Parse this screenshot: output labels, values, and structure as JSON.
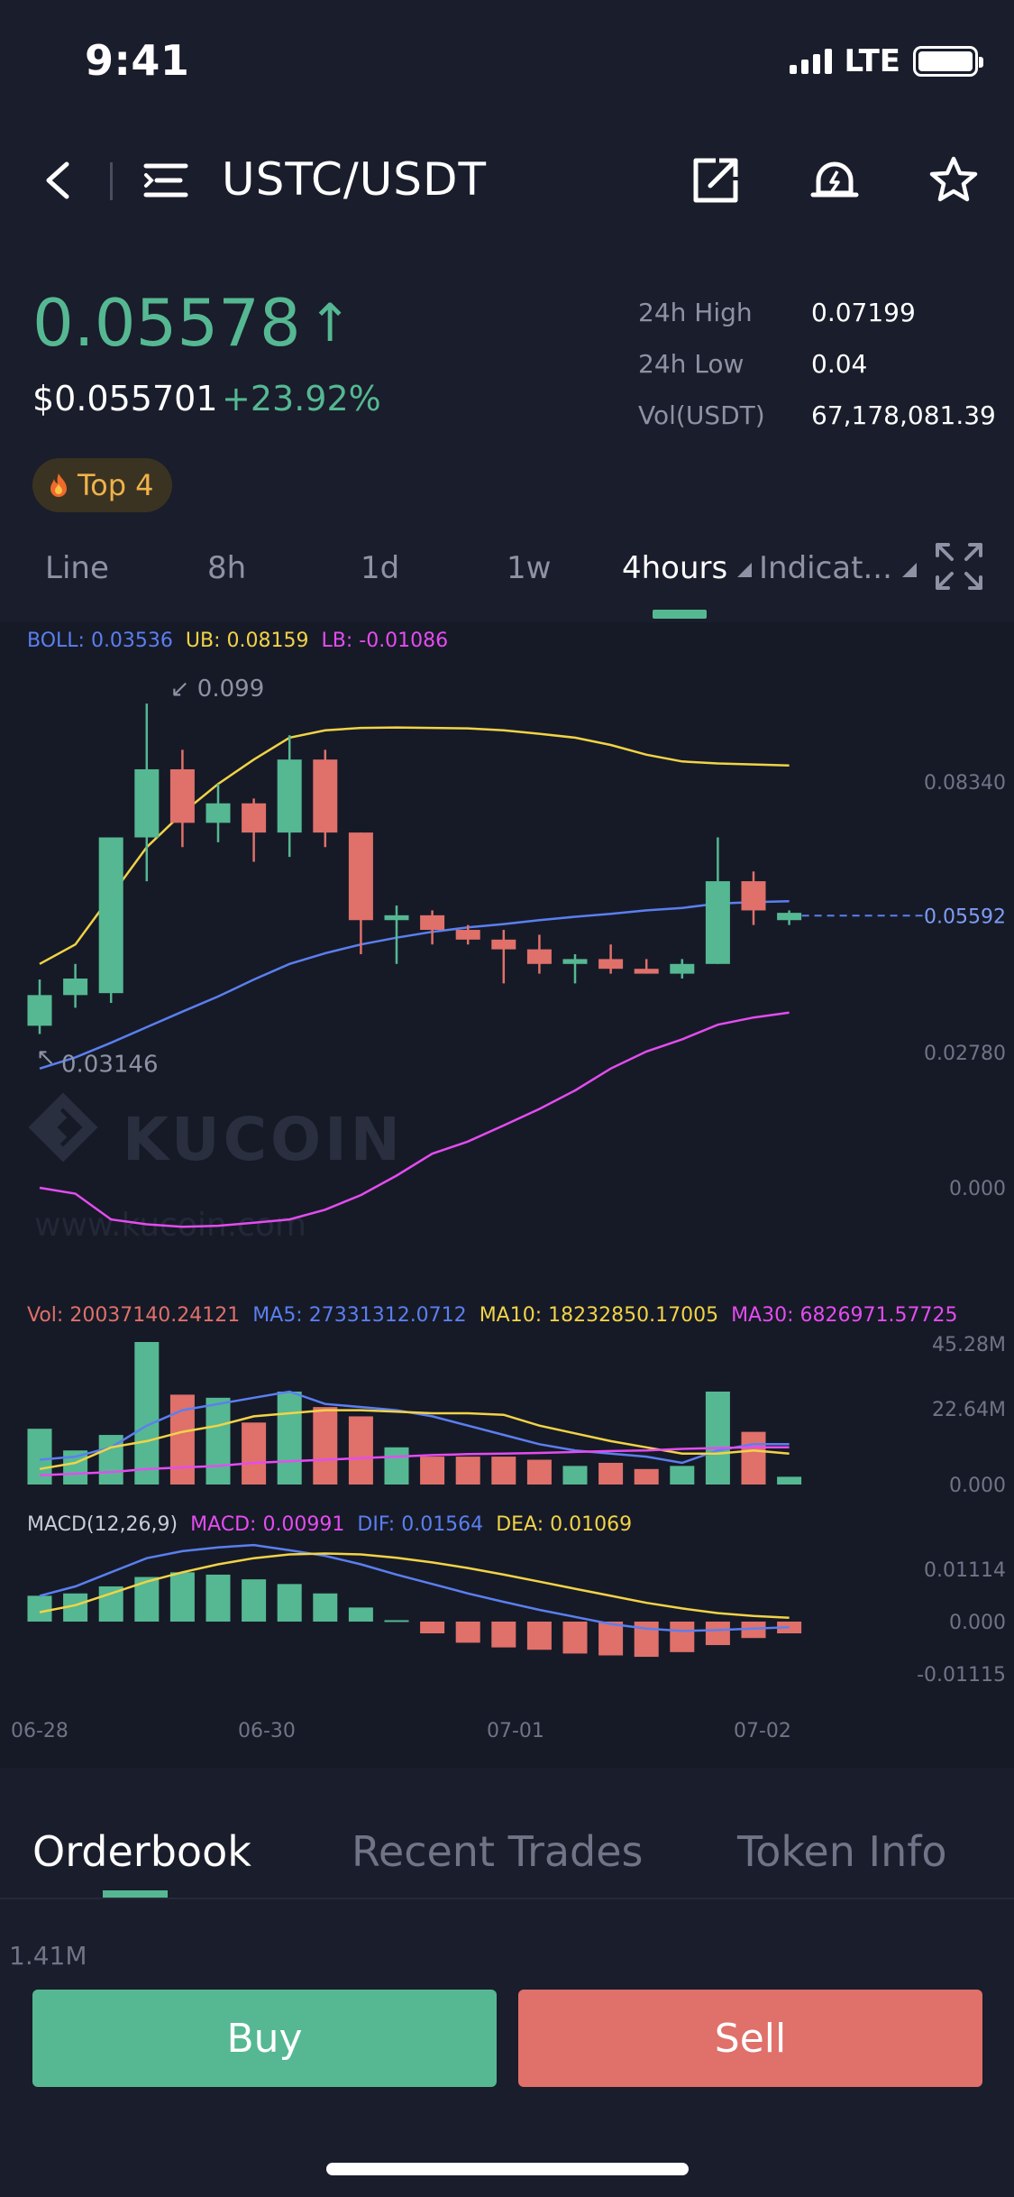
{
  "status_bar": {
    "time": "9:41",
    "network": "LTE"
  },
  "header": {
    "pair": "USTC/USDT"
  },
  "price": {
    "last": "0.05578",
    "arrow": "↑",
    "fiat": "$0.055701",
    "change": "+23.92%"
  },
  "stats": [
    {
      "label": "24h High",
      "value": "0.07199"
    },
    {
      "label": "24h Low",
      "value": "0.04"
    },
    {
      "label": "Vol(USDT)",
      "value": "67,178,081.39"
    }
  ],
  "badge": {
    "label": "Top 4"
  },
  "tabs": [
    {
      "label": "Line"
    },
    {
      "label": "8h"
    },
    {
      "label": "1d"
    },
    {
      "label": "1w"
    },
    {
      "label": "4hours"
    },
    {
      "label": "Indicat..."
    }
  ],
  "colors": {
    "up": "#55b892",
    "down": "#e0706a",
    "boll": "#5b7ff0",
    "ub": "#f2d346",
    "lb": "#e44cf0",
    "bg": "#1a1d2b"
  },
  "chart_data": {
    "type": "candlestick",
    "legend": {
      "boll": "BOLL: 0.03536",
      "ub": "UB: 0.08159",
      "lb": "LB: -0.01086"
    },
    "max_label": "0.099",
    "min_label": "0.03146",
    "last_price_label": "0.05592",
    "price_ticks": [
      "0.08340",
      "0.02780",
      "0.000"
    ],
    "x_ticks": [
      "06-28",
      "06-30",
      "07-01",
      "07-02"
    ],
    "candles": [
      {
        "o": 0.0333,
        "h": 0.0428,
        "l": 0.0316,
        "c": 0.0396
      },
      {
        "o": 0.0396,
        "h": 0.046,
        "l": 0.037,
        "c": 0.043
      },
      {
        "o": 0.04,
        "h": 0.072,
        "l": 0.038,
        "c": 0.072
      },
      {
        "o": 0.072,
        "h": 0.0995,
        "l": 0.063,
        "c": 0.086
      },
      {
        "o": 0.086,
        "h": 0.09,
        "l": 0.07,
        "c": 0.075
      },
      {
        "o": 0.075,
        "h": 0.083,
        "l": 0.071,
        "c": 0.079
      },
      {
        "o": 0.079,
        "h": 0.08,
        "l": 0.067,
        "c": 0.073
      },
      {
        "o": 0.073,
        "h": 0.093,
        "l": 0.068,
        "c": 0.088
      },
      {
        "o": 0.088,
        "h": 0.09,
        "l": 0.07,
        "c": 0.073
      },
      {
        "o": 0.073,
        "h": 0.073,
        "l": 0.048,
        "c": 0.055
      },
      {
        "o": 0.055,
        "h": 0.058,
        "l": 0.046,
        "c": 0.056
      },
      {
        "o": 0.056,
        "h": 0.057,
        "l": 0.05,
        "c": 0.053
      },
      {
        "o": 0.053,
        "h": 0.054,
        "l": 0.05,
        "c": 0.051
      },
      {
        "o": 0.051,
        "h": 0.053,
        "l": 0.042,
        "c": 0.049
      },
      {
        "o": 0.049,
        "h": 0.052,
        "l": 0.044,
        "c": 0.046
      },
      {
        "o": 0.046,
        "h": 0.048,
        "l": 0.042,
        "c": 0.047
      },
      {
        "o": 0.047,
        "h": 0.05,
        "l": 0.044,
        "c": 0.045
      },
      {
        "o": 0.045,
        "h": 0.047,
        "l": 0.044,
        "c": 0.044
      },
      {
        "o": 0.044,
        "h": 0.047,
        "l": 0.043,
        "c": 0.046
      },
      {
        "o": 0.046,
        "h": 0.072,
        "l": 0.046,
        "c": 0.063
      },
      {
        "o": 0.063,
        "h": 0.065,
        "l": 0.054,
        "c": 0.057
      },
      {
        "o": 0.055,
        "h": 0.057,
        "l": 0.054,
        "c": 0.0565
      }
    ],
    "boll_line": [
      0.0245,
      0.0268,
      0.0298,
      0.033,
      0.0362,
      0.0393,
      0.0428,
      0.046,
      0.0482,
      0.05,
      0.0514,
      0.0526,
      0.0535,
      0.0542,
      0.055,
      0.0557,
      0.0563,
      0.057,
      0.0575,
      0.0584,
      0.0587,
      0.0589
    ],
    "ub_line": [
      0.046,
      0.05,
      0.06,
      0.07,
      0.077,
      0.083,
      0.088,
      0.0925,
      0.094,
      0.0945,
      0.0946,
      0.0945,
      0.0944,
      0.094,
      0.0933,
      0.0925,
      0.091,
      0.089,
      0.0876,
      0.0872,
      0.087,
      0.0868
    ],
    "lb_line": [
      0.0,
      -0.0012,
      -0.0065,
      -0.0075,
      -0.008,
      -0.0078,
      -0.0072,
      -0.0065,
      -0.0045,
      -0.0015,
      0.0025,
      0.007,
      0.0095,
      0.0128,
      0.0162,
      0.02,
      0.0245,
      0.028,
      0.0305,
      0.0335,
      0.035,
      0.036
    ],
    "volume": {
      "legend": {
        "vol": "Vol: 20037140.24121",
        "ma5": "MA5: 27331312.0712",
        "ma10": "MA10: 18232850.17005",
        "ma30": "MA30: 6826971.57725"
      },
      "ticks": [
        "45.28M",
        "22.64M",
        "0.000"
      ],
      "max": 46000000,
      "bars": [
        18000000,
        11000000,
        16000000,
        46000000,
        29000000,
        28000000,
        20000000,
        30000000,
        25000000,
        22000000,
        12000000,
        9000000,
        9000000,
        9000000,
        8000000,
        6000000,
        7000000,
        5000000,
        6000000,
        30000000,
        17000000,
        2500000
      ],
      "ma5": [
        8000000,
        9000000,
        12000000,
        19000000,
        24000000,
        26000000,
        28000000,
        30000000,
        26000000,
        25000000,
        24000000,
        22000000,
        19000000,
        16000000,
        13000000,
        11000000,
        10000000,
        9000000,
        7000000,
        11000000,
        13000000,
        13000000
      ],
      "ma10": [
        5000000,
        7000000,
        12000000,
        14000000,
        17000000,
        19000000,
        22000000,
        23000000,
        24000000,
        24000000,
        23500000,
        23000000,
        23000000,
        22500000,
        19000000,
        16500000,
        14000000,
        12000000,
        10000000,
        10000000,
        11000000,
        10000000
      ],
      "ma30": [
        3000000,
        3500000,
        4000000,
        5000000,
        5500000,
        6000000,
        7000000,
        7500000,
        8000000,
        8500000,
        9000000,
        9500000,
        9800000,
        10000000,
        10200000,
        10500000,
        10800000,
        11000000,
        11500000,
        11800000,
        12000000,
        12000000
      ]
    },
    "macd": {
      "legend": {
        "title": "MACD(12,26,9)",
        "macd": "MACD: 0.00991",
        "dif": "DIF: 0.01564",
        "dea": "DEA: 0.01069"
      },
      "ticks": [
        "0.01114",
        "0.000",
        "-0.01115"
      ],
      "hist": [
        0.0055,
        0.006,
        0.0075,
        0.0095,
        0.0105,
        0.01,
        0.009,
        0.008,
        0.006,
        0.003,
        0.0003,
        -0.0025,
        -0.0045,
        -0.0055,
        -0.006,
        -0.0068,
        -0.0072,
        -0.0075,
        -0.0065,
        -0.005,
        -0.0035,
        -0.0025
      ],
      "dif": [
        0.0055,
        0.0075,
        0.0105,
        0.0135,
        0.015,
        0.0158,
        0.0163,
        0.0152,
        0.014,
        0.0122,
        0.01,
        0.008,
        0.006,
        0.0042,
        0.0025,
        0.001,
        -0.0005,
        -0.0015,
        -0.002,
        -0.0018,
        -0.0015,
        -0.0012
      ],
      "dea": [
        0.002,
        0.0035,
        0.006,
        0.0085,
        0.0105,
        0.0122,
        0.0135,
        0.0143,
        0.0145,
        0.0143,
        0.0136,
        0.0126,
        0.0114,
        0.01,
        0.0085,
        0.007,
        0.0055,
        0.004,
        0.0028,
        0.0018,
        0.0012,
        0.0008
      ]
    }
  },
  "bottom_tabs": [
    {
      "label": "Orderbook"
    },
    {
      "label": "Recent Trades"
    },
    {
      "label": "Token Info"
    }
  ],
  "orderbook": {
    "depth_label": "1.41M"
  },
  "actions": {
    "buy": "Buy",
    "sell": "Sell"
  },
  "watermark": {
    "brand": "KUCOIN",
    "url": "www.kucoin.com"
  }
}
